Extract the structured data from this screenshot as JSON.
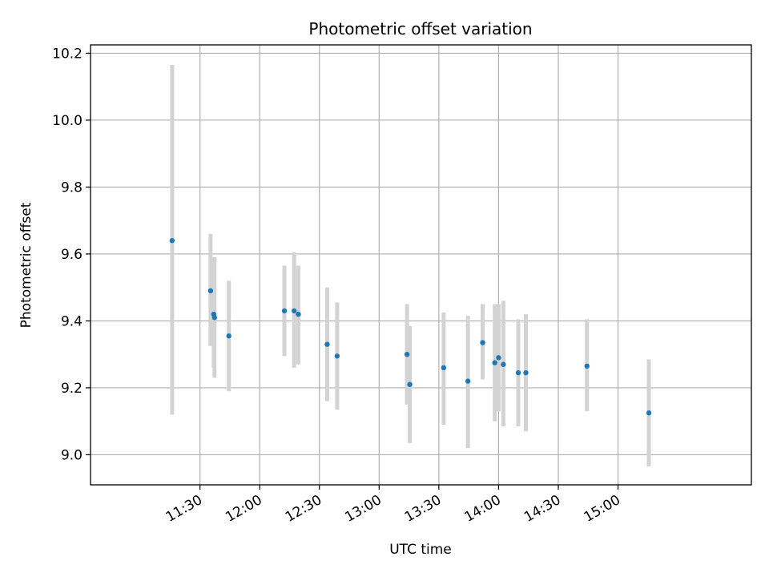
{
  "chart_data": {
    "type": "scatter",
    "title": "Photometric offset variation",
    "xlabel": "UTC time",
    "ylabel": "Photometric offset",
    "grid": true,
    "xlim_minutes": [
      635,
      967
    ],
    "ylim": [
      8.91,
      10.225
    ],
    "x_ticks": [
      {
        "minutes": 690,
        "label": "11:30"
      },
      {
        "minutes": 720,
        "label": "12:00"
      },
      {
        "minutes": 750,
        "label": "12:30"
      },
      {
        "minutes": 780,
        "label": "13:00"
      },
      {
        "minutes": 810,
        "label": "13:30"
      },
      {
        "minutes": 840,
        "label": "14:00"
      },
      {
        "minutes": 870,
        "label": "14:30"
      },
      {
        "minutes": 900,
        "label": "15:00"
      }
    ],
    "y_ticks": [
      {
        "value": 9.0,
        "label": "9.0"
      },
      {
        "value": 9.2,
        "label": "9.2"
      },
      {
        "value": 9.4,
        "label": "9.4"
      },
      {
        "value": 9.6,
        "label": "9.6"
      },
      {
        "value": 9.8,
        "label": "9.8"
      },
      {
        "value": 10.0,
        "label": "10.0"
      },
      {
        "value": 10.2,
        "label": "10.2"
      }
    ],
    "series": [
      {
        "name": "Photometric offset",
        "point_color": "#1f77b4",
        "errorbar_color": "#d3d3d3",
        "points": [
          {
            "time": "11:16",
            "minutes": 676.0,
            "y": 9.64,
            "lo": 9.12,
            "hi": 10.165
          },
          {
            "time": "11:35",
            "minutes": 695.3,
            "y": 9.49,
            "lo": 9.325,
            "hi": 9.66
          },
          {
            "time": "11:37",
            "minutes": 696.9,
            "y": 9.42,
            "lo": 9.26,
            "hi": 9.59
          },
          {
            "time": "11:37",
            "minutes": 697.3,
            "y": 9.41,
            "lo": 9.23,
            "hi": 9.59
          },
          {
            "time": "11:44",
            "minutes": 704.5,
            "y": 9.355,
            "lo": 9.19,
            "hi": 9.52
          },
          {
            "time": "12:12",
            "minutes": 732.4,
            "y": 9.43,
            "lo": 9.295,
            "hi": 9.565
          },
          {
            "time": "12:17",
            "minutes": 737.3,
            "y": 9.43,
            "lo": 9.26,
            "hi": 9.605
          },
          {
            "time": "12:19",
            "minutes": 739.4,
            "y": 9.42,
            "lo": 9.27,
            "hi": 9.565
          },
          {
            "time": "12:34",
            "minutes": 753.9,
            "y": 9.33,
            "lo": 9.16,
            "hi": 9.5
          },
          {
            "time": "12:39",
            "minutes": 758.9,
            "y": 9.295,
            "lo": 9.135,
            "hi": 9.455
          },
          {
            "time": "13:14",
            "minutes": 794.0,
            "y": 9.3,
            "lo": 9.15,
            "hi": 9.45
          },
          {
            "time": "13:15",
            "minutes": 795.4,
            "y": 9.21,
            "lo": 9.035,
            "hi": 9.385
          },
          {
            "time": "13:32",
            "minutes": 812.4,
            "y": 9.26,
            "lo": 9.09,
            "hi": 9.425
          },
          {
            "time": "13:44",
            "minutes": 824.6,
            "y": 9.22,
            "lo": 9.02,
            "hi": 9.415
          },
          {
            "time": "13:52",
            "minutes": 832.0,
            "y": 9.335,
            "lo": 9.225,
            "hi": 9.45
          },
          {
            "time": "13:58",
            "minutes": 838.1,
            "y": 9.275,
            "lo": 9.1,
            "hi": 9.45
          },
          {
            "time": "14:00",
            "minutes": 840.0,
            "y": 9.29,
            "lo": 9.13,
            "hi": 9.45
          },
          {
            "time": "14:02",
            "minutes": 842.4,
            "y": 9.27,
            "lo": 9.085,
            "hi": 9.46
          },
          {
            "time": "14:10",
            "minutes": 849.9,
            "y": 9.245,
            "lo": 9.085,
            "hi": 9.405
          },
          {
            "time": "14:14",
            "minutes": 853.7,
            "y": 9.245,
            "lo": 9.07,
            "hi": 9.42
          },
          {
            "time": "14:45",
            "minutes": 884.4,
            "y": 9.265,
            "lo": 9.13,
            "hi": 9.405
          },
          {
            "time": "15:16",
            "minutes": 915.5,
            "y": 9.125,
            "lo": 8.965,
            "hi": 9.285
          }
        ]
      }
    ]
  }
}
